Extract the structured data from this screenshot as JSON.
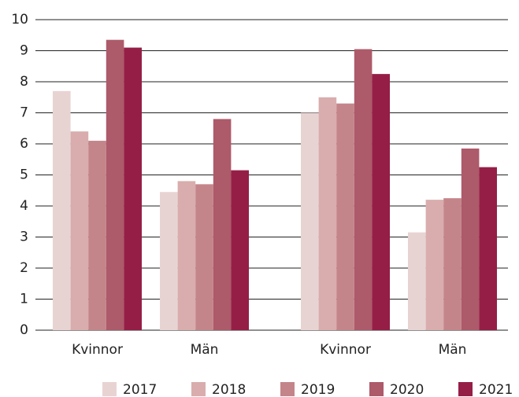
{
  "chart_data": {
    "type": "bar",
    "categories": [
      "Kvinnor",
      "Män",
      "Kvinnor",
      "Män"
    ],
    "series": [
      {
        "name": "2017",
        "color": "#e8d3d3",
        "values": [
          7.7,
          4.45,
          7.0,
          3.15
        ]
      },
      {
        "name": "2018",
        "color": "#d9adad",
        "values": [
          6.4,
          4.8,
          7.5,
          4.2
        ]
      },
      {
        "name": "2019",
        "color": "#c4858a",
        "values": [
          6.1,
          4.7,
          7.3,
          4.25
        ]
      },
      {
        "name": "2020",
        "color": "#ad5a6a",
        "values": [
          9.35,
          6.8,
          9.05,
          5.85
        ]
      },
      {
        "name": "2021",
        "color": "#951e47",
        "values": [
          9.1,
          5.15,
          8.25,
          5.25
        ]
      }
    ],
    "ylim": [
      0,
      10
    ],
    "yticks": [
      0,
      1,
      2,
      3,
      4,
      5,
      6,
      7,
      8,
      9,
      10
    ],
    "grid": true,
    "legend": "bottom"
  }
}
